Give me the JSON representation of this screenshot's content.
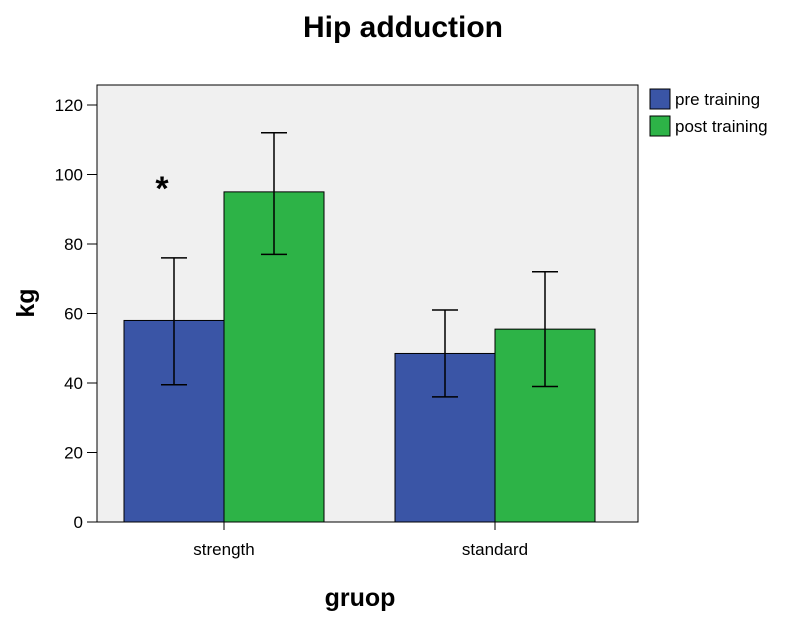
{
  "chart_data": {
    "type": "bar",
    "title": "Hip adduction",
    "xlabel": "gruop",
    "ylabel": "kg",
    "categories": [
      "strength",
      "standard"
    ],
    "series": [
      {
        "name": "pre training",
        "color": "#3a55a6",
        "values": [
          58,
          48.5
        ],
        "error_low": [
          39.5,
          36
        ],
        "error_high": [
          76,
          61
        ]
      },
      {
        "name": "post training",
        "color": "#2db347",
        "values": [
          95,
          55.5
        ],
        "error_low": [
          77,
          39
        ],
        "error_high": [
          112,
          72
        ]
      }
    ],
    "ylim": [
      0,
      120
    ],
    "yticks": [
      0,
      20,
      40,
      60,
      80,
      100,
      120
    ],
    "ytick_labels": [
      "0",
      "20",
      "40",
      "60",
      "80",
      "100",
      "120"
    ],
    "annotations": [
      {
        "text": "*",
        "category": "strength"
      }
    ],
    "legend": {
      "placement": "top-right, outside plot"
    },
    "background": "#f0f0f0",
    "grid": false
  }
}
